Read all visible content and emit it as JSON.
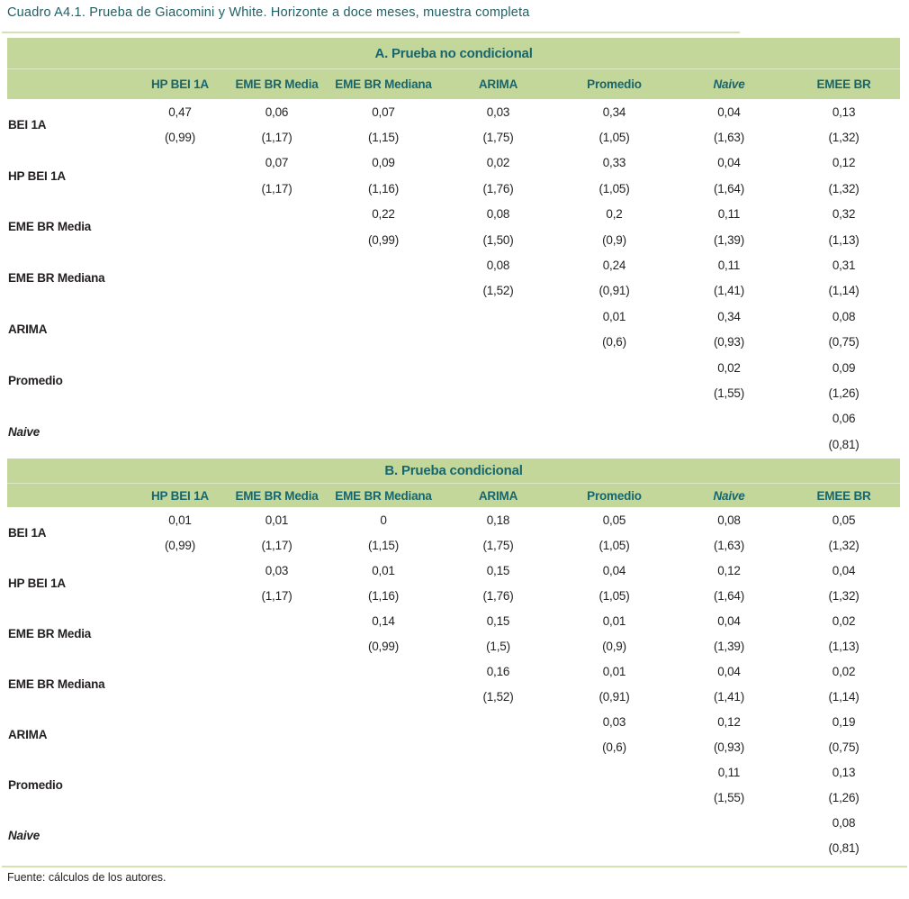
{
  "title": "Cuadro A4.1. Prueba de Giacomini y White. Horizonte a doce meses, muestra completa",
  "source": "Fuente: cálculos de los autores.",
  "colors": {
    "band_green": "#c4d79b",
    "header_teal": "#17666d",
    "body_text": "#231f20",
    "rule_green": "#d4e2b2"
  },
  "panels": [
    {
      "title": "A. Prueba no condicional",
      "columns": [
        {
          "label": "HP BEI 1A",
          "italic": false
        },
        {
          "label": "EME BR Media",
          "italic": false
        },
        {
          "label": "EME BR Mediana",
          "italic": false
        },
        {
          "label": "ARIMA",
          "italic": false
        },
        {
          "label": "Promedio",
          "italic": false
        },
        {
          "label": "Naive",
          "italic": true
        },
        {
          "label": "EMEE BR",
          "italic": false
        }
      ],
      "rows": [
        {
          "label": "BEI 1A",
          "italic": false,
          "values": [
            "0,47",
            "0,06",
            "0,07",
            "0,03",
            "0,34",
            "0,04",
            "0,13"
          ],
          "stats": [
            "(0,99)",
            "(1,17)",
            "(1,15)",
            "(1,75)",
            "(1,05)",
            "(1,63)",
            "(1,32)"
          ]
        },
        {
          "label": "HP BEI 1A",
          "italic": false,
          "values": [
            "",
            "0,07",
            "0,09",
            "0,02",
            "0,33",
            "0,04",
            "0,12"
          ],
          "stats": [
            "",
            "(1,17)",
            "(1,16)",
            "(1,76)",
            "(1,05)",
            "(1,64)",
            "(1,32)"
          ]
        },
        {
          "label": "EME BR Media",
          "italic": false,
          "values": [
            "",
            "",
            "0,22",
            "0,08",
            "0,2",
            "0,11",
            "0,32"
          ],
          "stats": [
            "",
            "",
            "(0,99)",
            "(1,50)",
            "(0,9)",
            "(1,39)",
            "(1,13)"
          ]
        },
        {
          "label": "EME BR Mediana",
          "italic": false,
          "values": [
            "",
            "",
            "",
            "0,08",
            "0,24",
            "0,11",
            "0,31"
          ],
          "stats": [
            "",
            "",
            "",
            "(1,52)",
            "(0,91)",
            "(1,41)",
            "(1,14)"
          ]
        },
        {
          "label": "ARIMA",
          "italic": false,
          "values": [
            "",
            "",
            "",
            "",
            "0,01",
            "0,34",
            "0,08"
          ],
          "stats": [
            "",
            "",
            "",
            "",
            "(0,6)",
            "(0,93)",
            "(0,75)"
          ]
        },
        {
          "label": "Promedio",
          "italic": false,
          "values": [
            "",
            "",
            "",
            "",
            "",
            "0,02",
            "0,09"
          ],
          "stats": [
            "",
            "",
            "",
            "",
            "",
            "(1,55)",
            "(1,26)"
          ]
        },
        {
          "label": "Naive",
          "italic": true,
          "values": [
            "",
            "",
            "",
            "",
            "",
            "",
            "0,06"
          ],
          "stats": [
            "",
            "",
            "",
            "",
            "",
            "",
            "(0,81)"
          ]
        }
      ]
    },
    {
      "title": "B. Prueba condicional",
      "columns": [
        {
          "label": "HP BEI 1A",
          "italic": false
        },
        {
          "label": "EME BR Media",
          "italic": false
        },
        {
          "label": "EME BR Mediana",
          "italic": false
        },
        {
          "label": "ARIMA",
          "italic": false
        },
        {
          "label": "Promedio",
          "italic": false
        },
        {
          "label": "Naive",
          "italic": true
        },
        {
          "label": "EMEE BR",
          "italic": false
        }
      ],
      "rows": [
        {
          "label": "BEI 1A",
          "italic": false,
          "values": [
            "0,01",
            "0,01",
            "0",
            "0,18",
            "0,05",
            "0,08",
            "0,05"
          ],
          "stats": [
            "(0,99)",
            "(1,17)",
            "(1,15)",
            "(1,75)",
            "(1,05)",
            "(1,63)",
            "(1,32)"
          ]
        },
        {
          "label": "HP BEI 1A",
          "italic": false,
          "values": [
            "",
            "0,03",
            "0,01",
            "0,15",
            "0,04",
            "0,12",
            "0,04"
          ],
          "stats": [
            "",
            "(1,17)",
            "(1,16)",
            "(1,76)",
            "(1,05)",
            "(1,64)",
            "(1,32)"
          ]
        },
        {
          "label": "EME BR Media",
          "italic": false,
          "values": [
            "",
            "",
            "0,14",
            "0,15",
            "0,01",
            "0,04",
            "0,02"
          ],
          "stats": [
            "",
            "",
            "(0,99)",
            "(1,5)",
            "(0,9)",
            "(1,39)",
            "(1,13)"
          ]
        },
        {
          "label": "EME BR Mediana",
          "italic": false,
          "values": [
            "",
            "",
            "",
            "0,16",
            "0,01",
            "0,04",
            "0,02"
          ],
          "stats": [
            "",
            "",
            "",
            "(1,52)",
            "(0,91)",
            "(1,41)",
            "(1,14)"
          ]
        },
        {
          "label": "ARIMA",
          "italic": false,
          "values": [
            "",
            "",
            "",
            "",
            "0,03",
            "0,12",
            "0,19"
          ],
          "stats": [
            "",
            "",
            "",
            "",
            "(0,6)",
            "(0,93)",
            "(0,75)"
          ]
        },
        {
          "label": "Promedio",
          "italic": false,
          "values": [
            "",
            "",
            "",
            "",
            "",
            "0,11",
            "0,13"
          ],
          "stats": [
            "",
            "",
            "",
            "",
            "",
            "(1,55)",
            "(1,26)"
          ]
        },
        {
          "label": "Naive",
          "italic": true,
          "values": [
            "",
            "",
            "",
            "",
            "",
            "",
            "0,08"
          ],
          "stats": [
            "",
            "",
            "",
            "",
            "",
            "",
            "(0,81)"
          ]
        }
      ]
    }
  ]
}
